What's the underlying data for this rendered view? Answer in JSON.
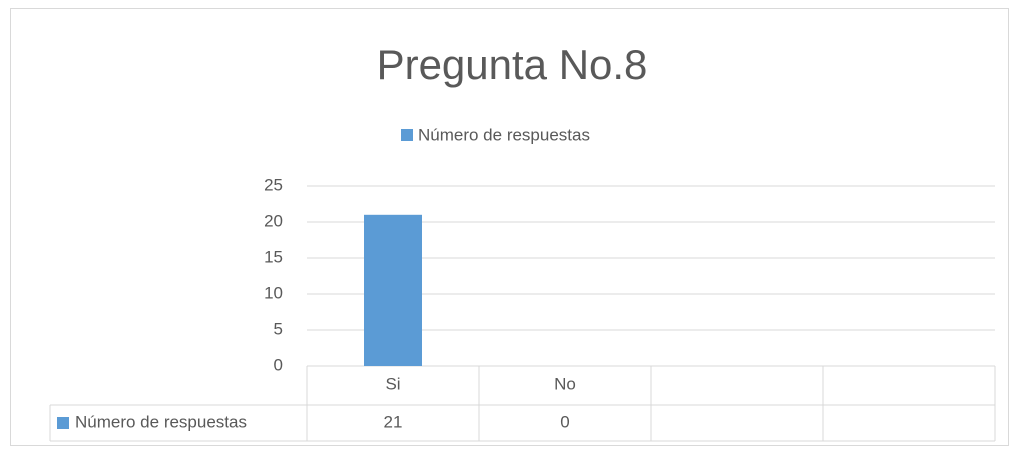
{
  "chart_data": {
    "type": "bar",
    "title": "Pregunta No.8",
    "categories": [
      "Si",
      "No",
      null,
      null
    ],
    "series": [
      {
        "name": "Número de respuestas",
        "color": "#5b9bd5",
        "values": [
          21,
          0,
          null,
          null
        ]
      }
    ],
    "ylim": [
      0,
      25
    ],
    "yticks": [
      0,
      5,
      10,
      15,
      20,
      25
    ],
    "grid": true,
    "legend": "top",
    "data_table": true
  }
}
